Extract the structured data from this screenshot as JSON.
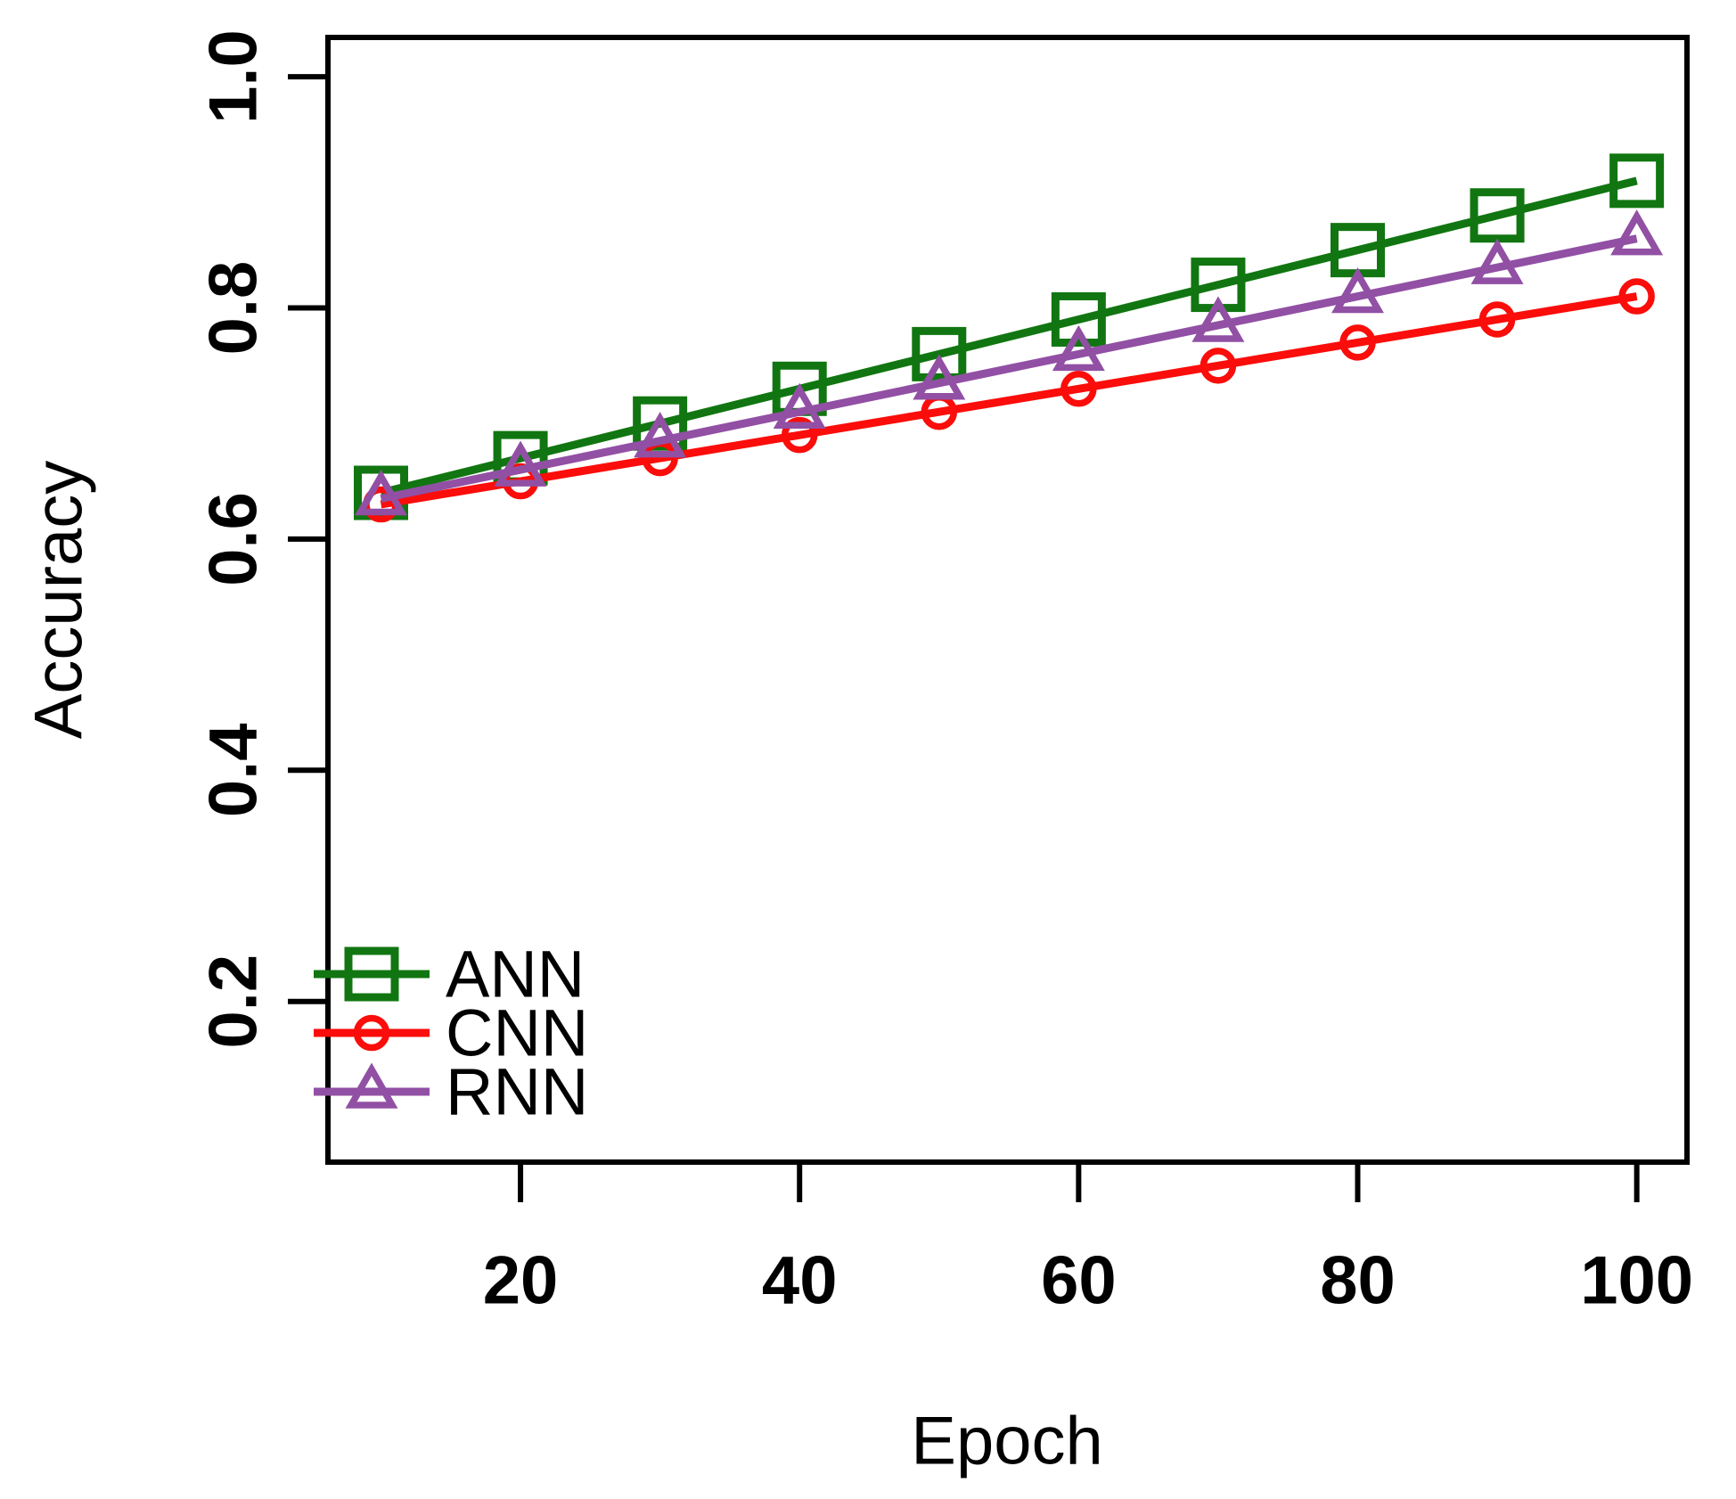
{
  "chart_data": {
    "type": "line",
    "title": "",
    "xlabel": "Epoch",
    "ylabel": "Accuracy",
    "x": [
      10,
      20,
      30,
      40,
      50,
      60,
      70,
      80,
      90,
      100
    ],
    "series": [
      {
        "name": "ANN",
        "color": "#117611",
        "marker": "square",
        "values": [
          0.64,
          0.67,
          0.7,
          0.73,
          0.76,
          0.79,
          0.82,
          0.85,
          0.88,
          0.91
        ]
      },
      {
        "name": "CNN",
        "color": "#fa0d0a",
        "marker": "circle",
        "values": [
          0.63,
          0.65,
          0.67,
          0.69,
          0.71,
          0.73,
          0.75,
          0.77,
          0.79,
          0.81
        ]
      },
      {
        "name": "RNN",
        "color": "#9150a4",
        "marker": "triangle",
        "values": [
          0.635,
          0.66,
          0.685,
          0.71,
          0.735,
          0.76,
          0.785,
          0.81,
          0.835,
          0.86
        ]
      }
    ],
    "x_ticks": [
      20,
      40,
      60,
      80,
      100
    ],
    "y_ticks": [
      0.2,
      0.4,
      0.6,
      0.8,
      1.0
    ],
    "x_tick_labels": [
      "20",
      "40",
      "60",
      "80",
      "100"
    ],
    "y_tick_labels": [
      "0.2",
      "0.4",
      "0.6",
      "0.8",
      "1.0"
    ],
    "xlim": [
      6.2,
      103.6
    ],
    "ylim": [
      0.061,
      1.034
    ],
    "grid": false,
    "legend_position": "bottom-left",
    "axis_color": "#000000",
    "background_color": "#ffffff"
  }
}
